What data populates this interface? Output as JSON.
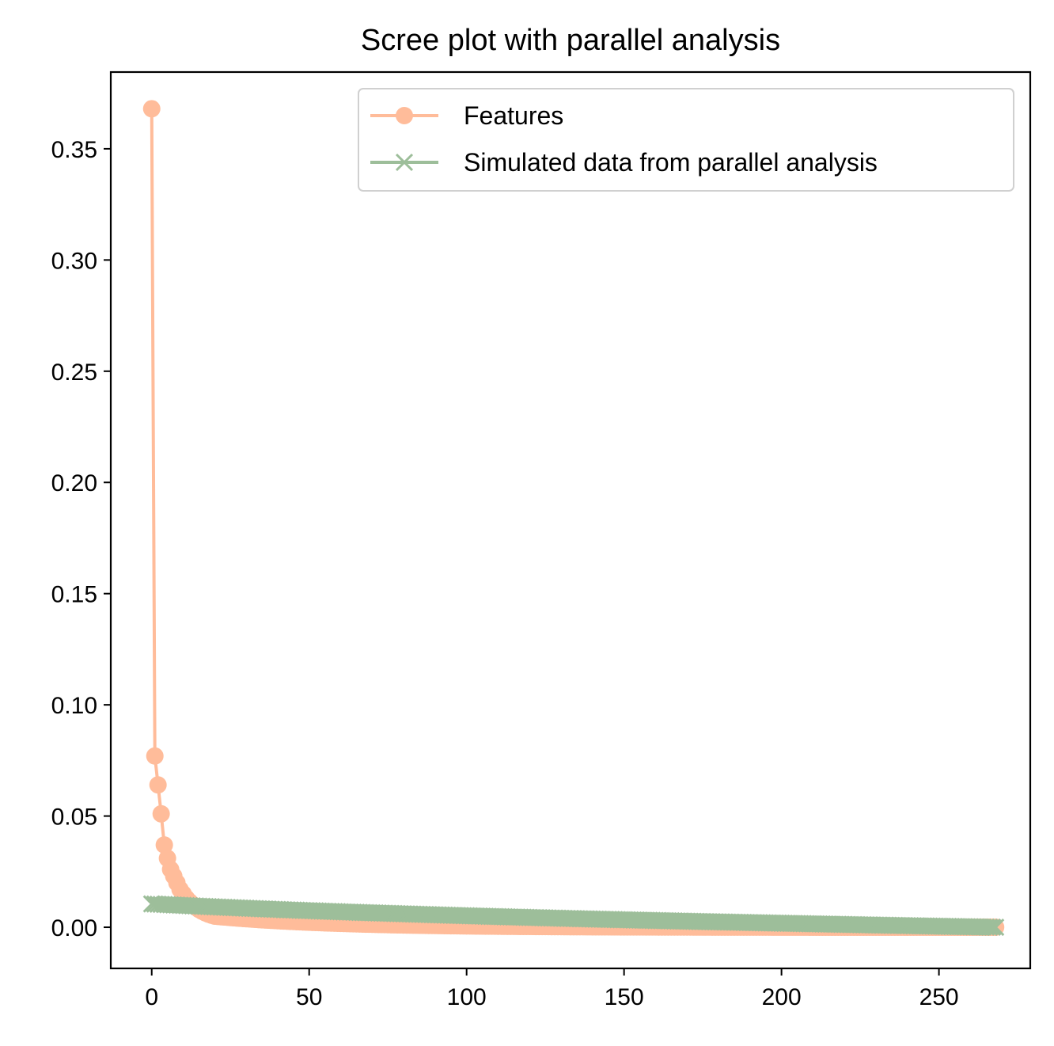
{
  "chart_data": {
    "type": "line",
    "title": "Scree plot with parallel analysis",
    "xlabel": "",
    "ylabel": "",
    "xlim": [
      -13,
      279
    ],
    "ylim": [
      -0.0185,
      0.3845
    ],
    "x_ticks": [
      0,
      50,
      100,
      150,
      200,
      250
    ],
    "x_tick_labels": [
      "0",
      "50",
      "100",
      "150",
      "200",
      "250"
    ],
    "y_ticks": [
      0.0,
      0.05,
      0.1,
      0.15,
      0.2,
      0.25,
      0.3,
      0.35
    ],
    "y_tick_labels": [
      "0.00",
      "0.05",
      "0.10",
      "0.15",
      "0.20",
      "0.25",
      "0.30",
      "0.35"
    ],
    "grid": false,
    "legend_position": "top-right",
    "series": [
      {
        "name": "Features",
        "color": "#FFBC9A",
        "marker": "circle",
        "n_points": 269,
        "values": [
          0.368,
          0.077,
          0.064,
          0.051,
          0.037,
          0.031,
          0.026,
          0.023,
          0.02,
          0.017,
          0.015,
          0.013,
          0.0115,
          0.0102,
          0.009,
          0.008,
          0.0072,
          0.0065,
          0.0059,
          0.0054,
          0.005
        ]
      },
      {
        "name": "Simulated data from parallel analysis",
        "color": "#9DBE9A",
        "marker": "x",
        "n_points": 269,
        "start_value": 0.0105,
        "end_value": 0.0
      }
    ]
  }
}
